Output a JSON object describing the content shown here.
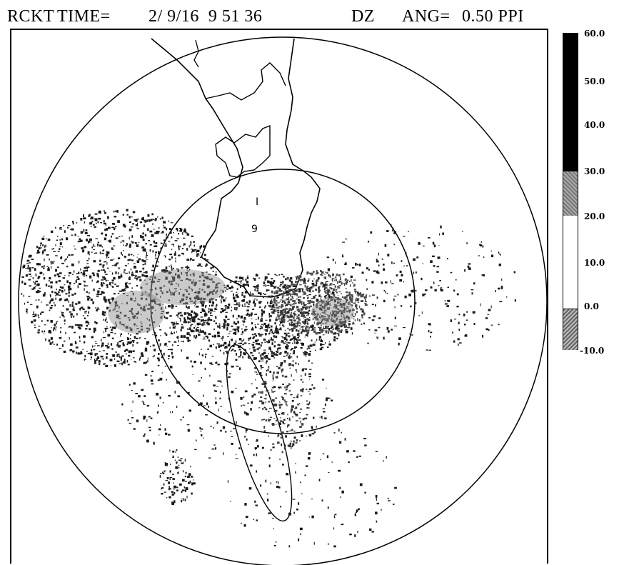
{
  "header": {
    "station": "RCKT",
    "time_label": "TIME=",
    "time_value": "2/ 9/16  9 51 36",
    "variable": "DZ",
    "angle_label": "ANG=",
    "angle_value": "0.50 PPI"
  },
  "colorbar": {
    "labels": [
      "60.0",
      "50.0",
      "40.0",
      "30.0",
      "20.0",
      "10.0",
      "0.0",
      "-10.0"
    ]
  },
  "map_labels": {
    "site_marker": "9",
    "tick_marker": "I"
  },
  "colors": {
    "background": "#ffffff",
    "foreground": "#000000",
    "echo_dark": "#1a1a1a",
    "echo_mid": "#6e6e6e"
  }
}
